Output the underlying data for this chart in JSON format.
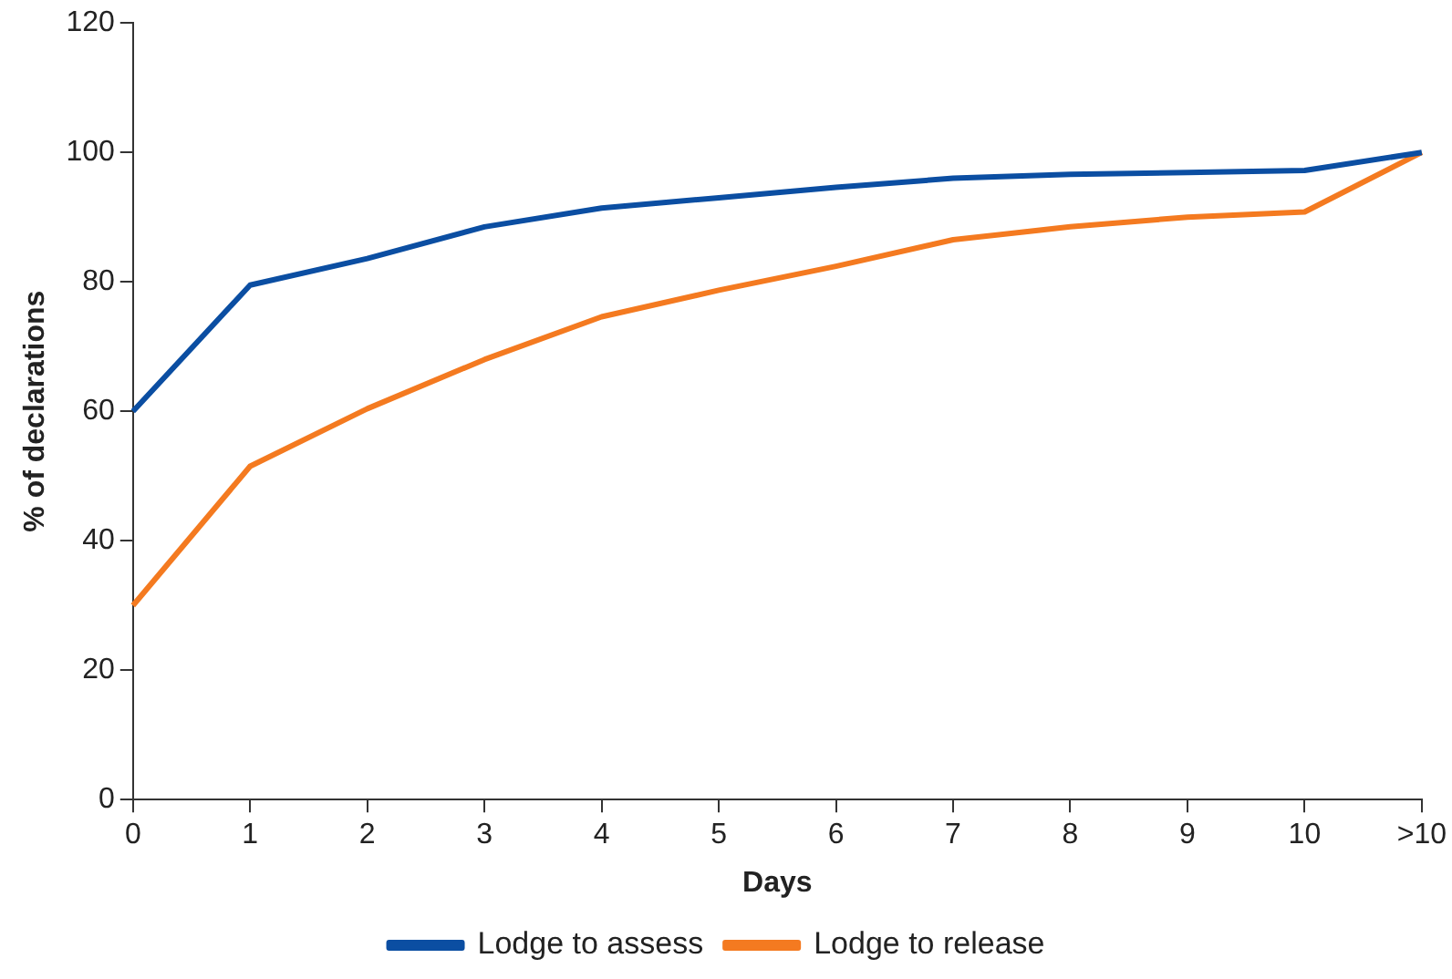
{
  "chart_data": {
    "type": "line",
    "xlabel": "Days",
    "ylabel": "% of declarations",
    "categories": [
      "0",
      "1",
      "2",
      "3",
      "4",
      "5",
      "6",
      "7",
      "8",
      "9",
      "10",
      ">10"
    ],
    "series": [
      {
        "name": "Lodge to assess",
        "color": "#0b4ea2",
        "values": [
          60,
          79.5,
          83.6,
          88.5,
          91.4,
          93,
          94.6,
          96,
          96.6,
          96.9,
          97.2,
          100
        ]
      },
      {
        "name": "Lodge to release",
        "color": "#f47a20",
        "values": [
          30,
          51.5,
          60.4,
          68,
          74.6,
          78.7,
          82.4,
          86.5,
          88.5,
          90,
          90.8,
          100
        ]
      }
    ],
    "ylim": [
      0,
      120
    ],
    "yticks": [
      0,
      20,
      40,
      60,
      80,
      100,
      120
    ],
    "grid": false,
    "legend": "bottom",
    "marker": "none",
    "line_style": "solid"
  }
}
